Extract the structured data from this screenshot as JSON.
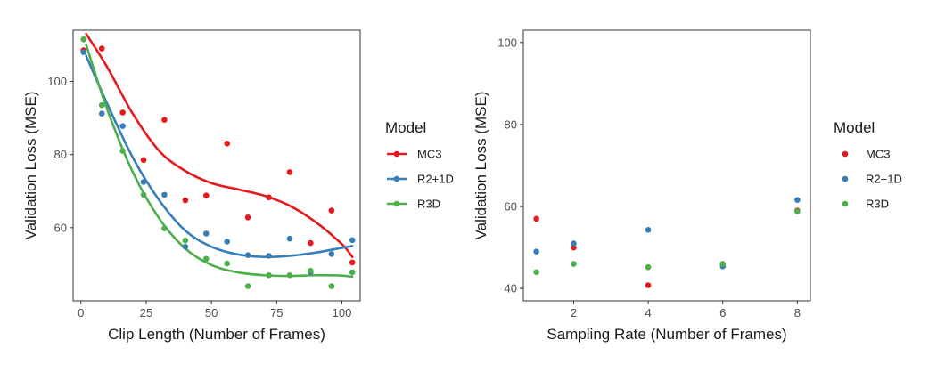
{
  "chart_data": [
    {
      "type": "scatter",
      "xlabel": "Clip Length (Number of Frames)",
      "ylabel": "Validation Loss (MSE)",
      "xlim": [
        -3,
        107
      ],
      "ylim": [
        40,
        114
      ],
      "xticks": [
        0,
        25,
        50,
        75,
        100
      ],
      "yticks": [
        60,
        80,
        100
      ],
      "grid": false,
      "legend": {
        "title": "Model",
        "position": "right",
        "show_lines": true
      },
      "smooth_fit": true,
      "series": [
        {
          "name": "MC3",
          "color": "#e41a1c",
          "points": [
            [
              1,
              108.5
            ],
            [
              8,
              109
            ],
            [
              16,
              91.5
            ],
            [
              24,
              78.5
            ],
            [
              32,
              89.5
            ],
            [
              40,
              67.5
            ],
            [
              48,
              68.8
            ],
            [
              56,
              83
            ],
            [
              64,
              62.8
            ],
            [
              72,
              68.3
            ],
            [
              80,
              75.2
            ],
            [
              88,
              55.8
            ],
            [
              96,
              64.7
            ],
            [
              104,
              50.5
            ]
          ],
          "curve": [
            [
              2,
              113
            ],
            [
              10,
              104
            ],
            [
              20,
              91
            ],
            [
              30,
              81
            ],
            [
              40,
              75.5
            ],
            [
              50,
              72.2
            ],
            [
              60,
              70.5
            ],
            [
              70,
              68.8
            ],
            [
              80,
              66
            ],
            [
              90,
              61.5
            ],
            [
              100,
              55.5
            ],
            [
              104,
              52
            ]
          ]
        },
        {
          "name": "R2+1D",
          "color": "#377eb8",
          "points": [
            [
              1,
              108
            ],
            [
              8,
              91.2
            ],
            [
              16,
              87.8
            ],
            [
              24,
              72.5
            ],
            [
              32,
              69
            ],
            [
              40,
              54.8
            ],
            [
              48,
              58.4
            ],
            [
              56,
              56.2
            ],
            [
              64,
              52.5
            ],
            [
              72,
              52.3
            ],
            [
              80,
              57
            ],
            [
              88,
              47.8
            ],
            [
              96,
              52.8
            ],
            [
              104,
              56.6
            ]
          ],
          "curve": [
            [
              2,
              107
            ],
            [
              10,
              94
            ],
            [
              20,
              79
            ],
            [
              30,
              67.5
            ],
            [
              40,
              59.2
            ],
            [
              50,
              54.8
            ],
            [
              60,
              52.7
            ],
            [
              70,
              52
            ],
            [
              80,
              52.3
            ],
            [
              90,
              53.2
            ],
            [
              100,
              54.5
            ],
            [
              104,
              55
            ]
          ]
        },
        {
          "name": "R3D",
          "color": "#4daf4a",
          "points": [
            [
              1,
              111.5
            ],
            [
              8,
              93.5
            ],
            [
              16,
              81
            ],
            [
              24,
              69
            ],
            [
              32,
              59.8
            ],
            [
              40,
              56.5
            ],
            [
              48,
              51.5
            ],
            [
              56,
              50.2
            ],
            [
              64,
              44
            ],
            [
              72,
              47
            ],
            [
              80,
              47
            ],
            [
              88,
              48.2
            ],
            [
              96,
              44
            ],
            [
              104,
              47.8
            ]
          ],
          "curve": [
            [
              2,
              110
            ],
            [
              10,
              92.5
            ],
            [
              20,
              75
            ],
            [
              30,
              62.5
            ],
            [
              40,
              54.3
            ],
            [
              50,
              49.8
            ],
            [
              60,
              47.8
            ],
            [
              70,
              47
            ],
            [
              80,
              46.8
            ],
            [
              90,
              47
            ],
            [
              100,
              46.9
            ],
            [
              104,
              46.6
            ]
          ]
        }
      ]
    },
    {
      "type": "scatter",
      "xlabel": "Sampling Rate (Number of Frames)",
      "ylabel": "Validation Loss (MSE)",
      "xlim": [
        0.65,
        8.35
      ],
      "ylim": [
        37,
        103
      ],
      "xticks": [
        2,
        4,
        6,
        8
      ],
      "yticks": [
        40,
        60,
        80,
        100
      ],
      "grid": false,
      "legend": {
        "title": "Model",
        "position": "right",
        "show_lines": false
      },
      "smooth_fit": false,
      "series": [
        {
          "name": "MC3",
          "color": "#e41a1c",
          "points": [
            [
              1,
              57
            ],
            [
              2,
              50
            ],
            [
              4,
              40.8
            ],
            [
              6,
              46
            ],
            [
              8,
              59
            ]
          ]
        },
        {
          "name": "R2+1D",
          "color": "#377eb8",
          "points": [
            [
              1,
              49
            ],
            [
              2,
              51
            ],
            [
              4,
              54.3
            ],
            [
              6,
              45.4
            ],
            [
              8,
              61.6
            ]
          ]
        },
        {
          "name": "R3D",
          "color": "#4daf4a",
          "points": [
            [
              1,
              44
            ],
            [
              2,
              46
            ],
            [
              4,
              45.2
            ],
            [
              6,
              46
            ],
            [
              8,
              58.8
            ]
          ]
        }
      ]
    }
  ]
}
